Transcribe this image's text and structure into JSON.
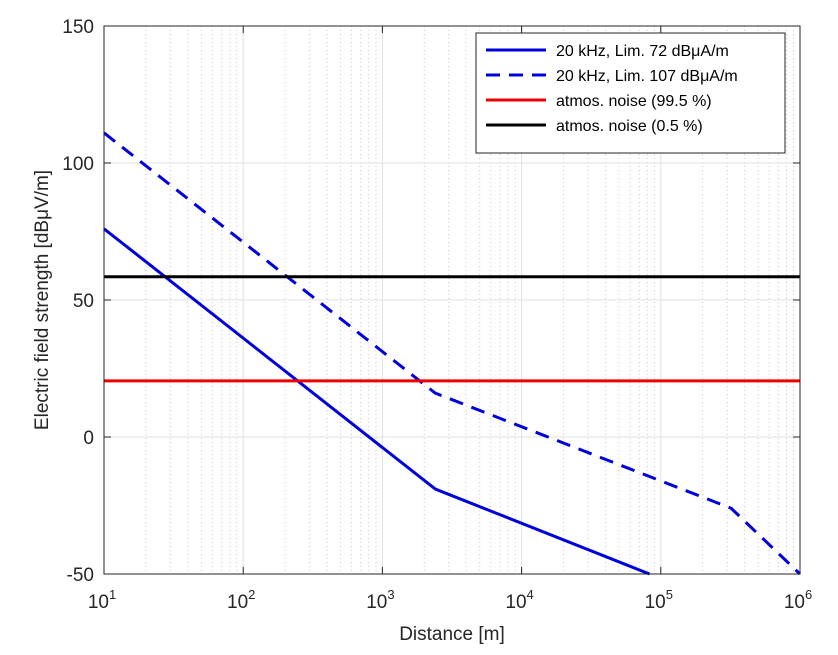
{
  "chart_data": {
    "type": "line",
    "title": "",
    "xlabel": "Distance [m]",
    "ylabel": "Electric field strength [dBμV/m]",
    "xscale": "log",
    "xlim": [
      10,
      1000000
    ],
    "ylim": [
      -50,
      150
    ],
    "grid": "on (major and minor)",
    "legend_position": "top-right",
    "x_ticks": [
      {
        "base": "10",
        "exp": "1"
      },
      {
        "base": "10",
        "exp": "2"
      },
      {
        "base": "10",
        "exp": "3"
      },
      {
        "base": "10",
        "exp": "4"
      },
      {
        "base": "10",
        "exp": "5"
      },
      {
        "base": "10",
        "exp": "6"
      }
    ],
    "y_ticks": [
      "-50",
      "0",
      "50",
      "100",
      "150"
    ],
    "y_tick_values": [
      -50,
      0,
      50,
      100,
      150
    ],
    "series": [
      {
        "name": "20 kHz, Lim. 72 dBμA/m",
        "color": "#0000dd",
        "style": "solid",
        "x": [
          10,
          2400,
          83000
        ],
        "y": [
          76,
          -19,
          -50
        ]
      },
      {
        "name": "20 kHz, Lim. 107 dBμA/m",
        "color": "#0000dd",
        "style": "dashed",
        "x": [
          10,
          2400,
          320000,
          1000000
        ],
        "y": [
          111,
          16,
          -26,
          -50
        ]
      },
      {
        "name": "atmos. noise (99.5 %)",
        "color": "#ee0000",
        "style": "solid",
        "x": [
          10,
          1000000
        ],
        "y": [
          20.5,
          20.5
        ]
      },
      {
        "name": "atmos. noise (0.5 %)",
        "color": "#000000",
        "style": "solid",
        "x": [
          10,
          1000000
        ],
        "y": [
          58.5,
          58.5
        ]
      }
    ]
  }
}
